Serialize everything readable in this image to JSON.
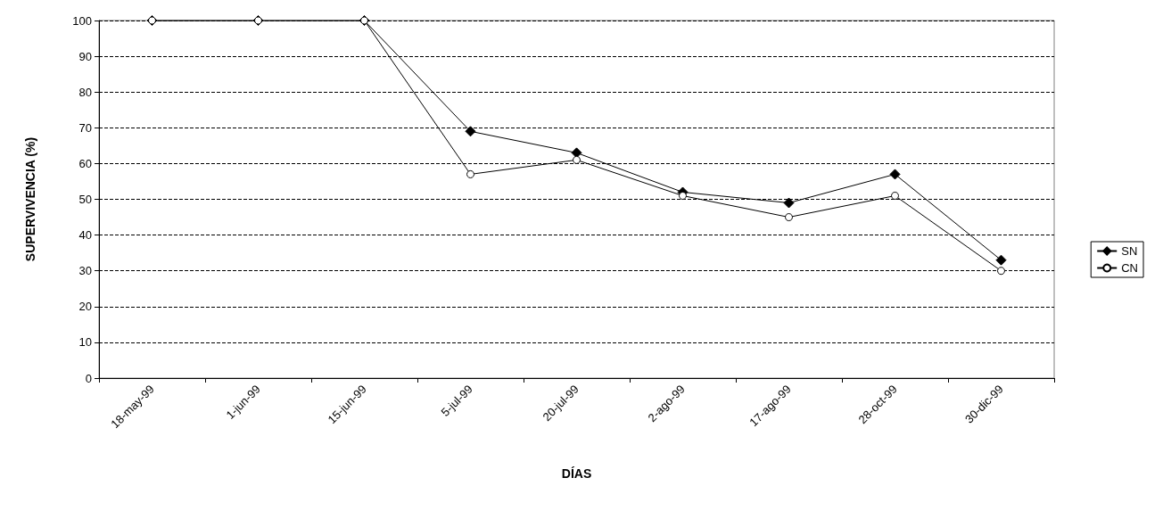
{
  "chart_data": {
    "type": "line",
    "xlabel": "DÍAS",
    "ylabel": "SUPERVIVENCIA (%)",
    "categories": [
      "18-may-99",
      "1-jun-99",
      "15-jun-99",
      "5-jul-99",
      "20-jul-99",
      "2-ago-99",
      "17-ago-99",
      "28-oct-99",
      "30-dic-99"
    ],
    "series": [
      {
        "name": "SN",
        "color": "#000000",
        "marker": "diamond",
        "values": [
          100,
          100,
          100,
          69,
          63,
          52,
          49,
          57,
          33
        ]
      },
      {
        "name": "CN",
        "color": "#000000",
        "marker": "circle",
        "values": [
          100,
          100,
          100,
          57,
          61,
          51,
          45,
          51,
          30
        ]
      }
    ],
    "ylim": [
      0,
      100
    ],
    "yticks": [
      0,
      10,
      20,
      30,
      40,
      50,
      60,
      70,
      80,
      90,
      100
    ],
    "grid": "y",
    "legend": "right",
    "line_style": "solid"
  }
}
